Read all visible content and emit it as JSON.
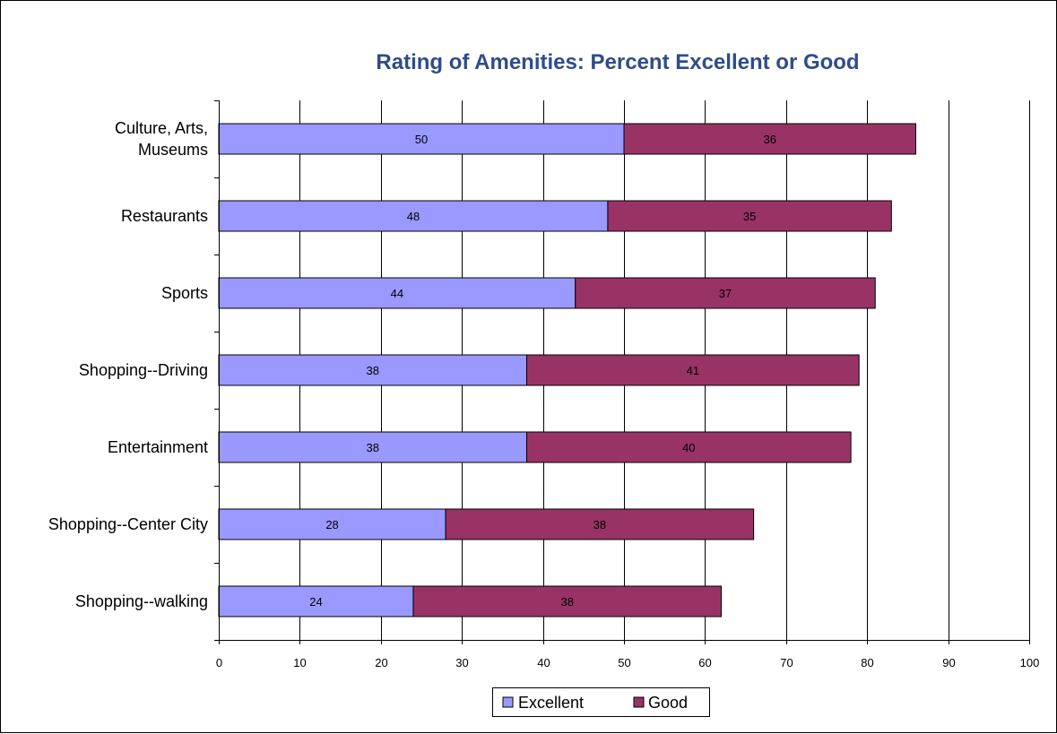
{
  "chart_data": {
    "type": "bar",
    "orientation": "horizontal",
    "stacked": true,
    "title": "Rating of Amenities:  Percent Excellent or Good",
    "categories": [
      [
        "Culture, Arts,",
        "Museums"
      ],
      [
        "Restaurants"
      ],
      [
        "Sports"
      ],
      [
        "Shopping--Driving"
      ],
      [
        "Entertainment"
      ],
      [
        "Shopping--Center City"
      ],
      [
        "Shopping--walking"
      ]
    ],
    "series": [
      {
        "name": "Excellent",
        "values": [
          50,
          48,
          44,
          38,
          38,
          28,
          24
        ]
      },
      {
        "name": "Good",
        "values": [
          36,
          35,
          37,
          41,
          40,
          38,
          38
        ]
      }
    ],
    "xlim": [
      0,
      100
    ],
    "xticks": [
      "0",
      "10",
      "20",
      "30",
      "40",
      "50",
      "60",
      "70",
      "80",
      "90",
      "100"
    ],
    "grid": true,
    "legend": "bottom-center",
    "colors": {
      "title": "#2E4C8A",
      "excellent": "#9999FF",
      "good": "#993366",
      "grid": "#000000"
    }
  }
}
